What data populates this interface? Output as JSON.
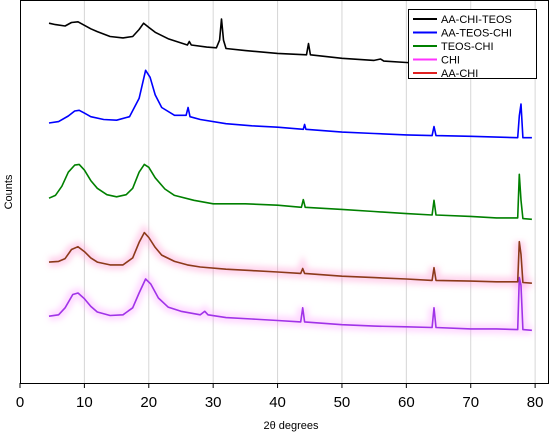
{
  "chart_data": {
    "type": "line",
    "title": "",
    "xlabel": "2θ degrees",
    "ylabel": "Counts",
    "xlim": [
      0,
      82
    ],
    "x_ticks": [
      0,
      10,
      20,
      30,
      40,
      50,
      60,
      70,
      80
    ],
    "grid": "vertical",
    "legend_position": "top-right",
    "series": [
      {
        "name": "AA-CHI-TEOS",
        "color": "#000000",
        "points": [
          [
            4.5,
            4.17
          ],
          [
            5.5,
            4.15
          ],
          [
            7,
            4.13
          ],
          [
            8,
            4.18
          ],
          [
            9,
            4.19
          ],
          [
            10,
            4.14
          ],
          [
            11,
            4.09
          ],
          [
            12,
            4.05
          ],
          [
            14,
            3.98
          ],
          [
            16,
            3.96
          ],
          [
            17.5,
            3.98
          ],
          [
            18.5,
            4.08
          ],
          [
            19.2,
            4.17
          ],
          [
            20,
            4.11
          ],
          [
            21,
            4.04
          ],
          [
            23,
            3.95
          ],
          [
            26,
            3.86
          ],
          [
            26.3,
            3.91
          ],
          [
            26.6,
            3.86
          ],
          [
            29,
            3.83
          ],
          [
            30.5,
            3.82
          ],
          [
            31,
            3.93
          ],
          [
            31.3,
            4.23
          ],
          [
            31.6,
            3.93
          ],
          [
            32,
            3.81
          ],
          [
            35,
            3.78
          ],
          [
            40,
            3.74
          ],
          [
            44.5,
            3.72
          ],
          [
            44.8,
            3.88
          ],
          [
            45.1,
            3.72
          ],
          [
            50,
            3.67
          ],
          [
            55,
            3.64
          ],
          [
            56,
            3.66
          ],
          [
            56.5,
            3.63
          ],
          [
            60,
            3.61
          ],
          [
            64,
            3.59
          ],
          [
            64.3,
            3.67
          ],
          [
            64.6,
            3.59
          ],
          [
            68,
            3.58
          ],
          [
            72,
            3.57
          ],
          [
            75,
            3.56
          ],
          [
            77.3,
            3.56
          ],
          [
            77.6,
            3.74
          ],
          [
            77.9,
            3.92
          ],
          [
            78.2,
            3.56
          ],
          [
            79.5,
            3.55
          ]
        ]
      },
      {
        "name": "AA-TEOS-CHI",
        "color": "#0000ff",
        "points": [
          [
            4.5,
            2.75
          ],
          [
            6,
            2.77
          ],
          [
            7.5,
            2.85
          ],
          [
            8.5,
            2.92
          ],
          [
            9.2,
            2.93
          ],
          [
            10,
            2.89
          ],
          [
            11,
            2.84
          ],
          [
            13,
            2.8
          ],
          [
            15,
            2.79
          ],
          [
            17,
            2.84
          ],
          [
            18.5,
            3.1
          ],
          [
            19.5,
            3.5
          ],
          [
            20.2,
            3.4
          ],
          [
            21,
            3.15
          ],
          [
            22,
            2.97
          ],
          [
            24,
            2.86
          ],
          [
            25.8,
            2.86
          ],
          [
            26.1,
            2.97
          ],
          [
            26.4,
            2.84
          ],
          [
            28,
            2.8
          ],
          [
            32,
            2.74
          ],
          [
            36,
            2.71
          ],
          [
            40,
            2.69
          ],
          [
            44,
            2.66
          ],
          [
            44.2,
            2.73
          ],
          [
            44.4,
            2.66
          ],
          [
            50,
            2.62
          ],
          [
            55,
            2.6
          ],
          [
            60,
            2.58
          ],
          [
            64,
            2.57
          ],
          [
            64.3,
            2.7
          ],
          [
            64.6,
            2.57
          ],
          [
            70,
            2.56
          ],
          [
            77.3,
            2.54
          ],
          [
            77.55,
            2.85
          ],
          [
            77.8,
            3.02
          ],
          [
            78.1,
            2.54
          ],
          [
            79.5,
            2.54
          ]
        ]
      },
      {
        "name": "TEOS-CHI",
        "color": "#008000",
        "points": [
          [
            4.5,
            1.68
          ],
          [
            5.5,
            1.72
          ],
          [
            6.5,
            1.85
          ],
          [
            7.5,
            2.05
          ],
          [
            8.5,
            2.15
          ],
          [
            9.2,
            2.16
          ],
          [
            10,
            2.08
          ],
          [
            11,
            1.93
          ],
          [
            12,
            1.82
          ],
          [
            13.5,
            1.73
          ],
          [
            15,
            1.7
          ],
          [
            16.5,
            1.73
          ],
          [
            17.5,
            1.82
          ],
          [
            18.5,
            2.05
          ],
          [
            19.3,
            2.16
          ],
          [
            20,
            2.12
          ],
          [
            21,
            1.97
          ],
          [
            22.5,
            1.81
          ],
          [
            24,
            1.72
          ],
          [
            27,
            1.65
          ],
          [
            30,
            1.6
          ],
          [
            35,
            1.6
          ],
          [
            40,
            1.58
          ],
          [
            43.7,
            1.55
          ],
          [
            44,
            1.66
          ],
          [
            44.3,
            1.55
          ],
          [
            50,
            1.52
          ],
          [
            55,
            1.49
          ],
          [
            60,
            1.46
          ],
          [
            64,
            1.44
          ],
          [
            64.3,
            1.65
          ],
          [
            64.6,
            1.44
          ],
          [
            70,
            1.42
          ],
          [
            74,
            1.4
          ],
          [
            77.3,
            1.4
          ],
          [
            77.55,
            2.02
          ],
          [
            77.8,
            1.65
          ],
          [
            78.1,
            1.39
          ],
          [
            79.5,
            1.38
          ]
        ]
      },
      {
        "name": "CHI",
        "color": "#a033e8",
        "points": [
          [
            4.5,
            0.0
          ],
          [
            6,
            0.02
          ],
          [
            7,
            0.12
          ],
          [
            8.2,
            0.31
          ],
          [
            9,
            0.33
          ],
          [
            10,
            0.25
          ],
          [
            11,
            0.14
          ],
          [
            12,
            0.06
          ],
          [
            14,
            0.01
          ],
          [
            16,
            0.02
          ],
          [
            17.5,
            0.12
          ],
          [
            18.5,
            0.33
          ],
          [
            19.5,
            0.53
          ],
          [
            20.3,
            0.46
          ],
          [
            21.5,
            0.26
          ],
          [
            23,
            0.13
          ],
          [
            25,
            0.07
          ],
          [
            28,
            0.02
          ],
          [
            28.7,
            0.07
          ],
          [
            29.2,
            0.02
          ],
          [
            32,
            -0.02
          ],
          [
            36,
            -0.04
          ],
          [
            40,
            -0.06
          ],
          [
            43.6,
            -0.08
          ],
          [
            43.9,
            0.12
          ],
          [
            44.2,
            -0.08
          ],
          [
            50,
            -0.12
          ],
          [
            55,
            -0.14
          ],
          [
            60,
            -0.15
          ],
          [
            64,
            -0.16
          ],
          [
            64.3,
            0.12
          ],
          [
            64.6,
            -0.16
          ],
          [
            70,
            -0.18
          ],
          [
            74,
            -0.18
          ],
          [
            77.3,
            -0.19
          ],
          [
            77.55,
            0.55
          ],
          [
            77.8,
            0.44
          ],
          [
            78.1,
            -0.19
          ],
          [
            79.5,
            -0.2
          ]
        ]
      },
      {
        "name": "AA-CHI",
        "color": "#8b3a1a",
        "points": [
          [
            4.5,
            0.77
          ],
          [
            6,
            0.78
          ],
          [
            7,
            0.82
          ],
          [
            8,
            0.95
          ],
          [
            9,
            0.99
          ],
          [
            10,
            0.92
          ],
          [
            11,
            0.83
          ],
          [
            12,
            0.77
          ],
          [
            14,
            0.73
          ],
          [
            16,
            0.73
          ],
          [
            17.5,
            0.83
          ],
          [
            18.5,
            1.05
          ],
          [
            19.3,
            1.19
          ],
          [
            20,
            1.12
          ],
          [
            21,
            0.98
          ],
          [
            22,
            0.87
          ],
          [
            24,
            0.78
          ],
          [
            26,
            0.73
          ],
          [
            28,
            0.7
          ],
          [
            32,
            0.67
          ],
          [
            36,
            0.65
          ],
          [
            40,
            0.63
          ],
          [
            43.6,
            0.61
          ],
          [
            43.9,
            0.68
          ],
          [
            44.2,
            0.61
          ],
          [
            50,
            0.57
          ],
          [
            55,
            0.55
          ],
          [
            60,
            0.53
          ],
          [
            64,
            0.51
          ],
          [
            64.3,
            0.69
          ],
          [
            64.6,
            0.51
          ],
          [
            70,
            0.5
          ],
          [
            74,
            0.49
          ],
          [
            77.3,
            0.49
          ],
          [
            77.55,
            1.06
          ],
          [
            77.8,
            0.88
          ],
          [
            78.1,
            0.48
          ],
          [
            79.5,
            0.47
          ]
        ]
      }
    ]
  }
}
